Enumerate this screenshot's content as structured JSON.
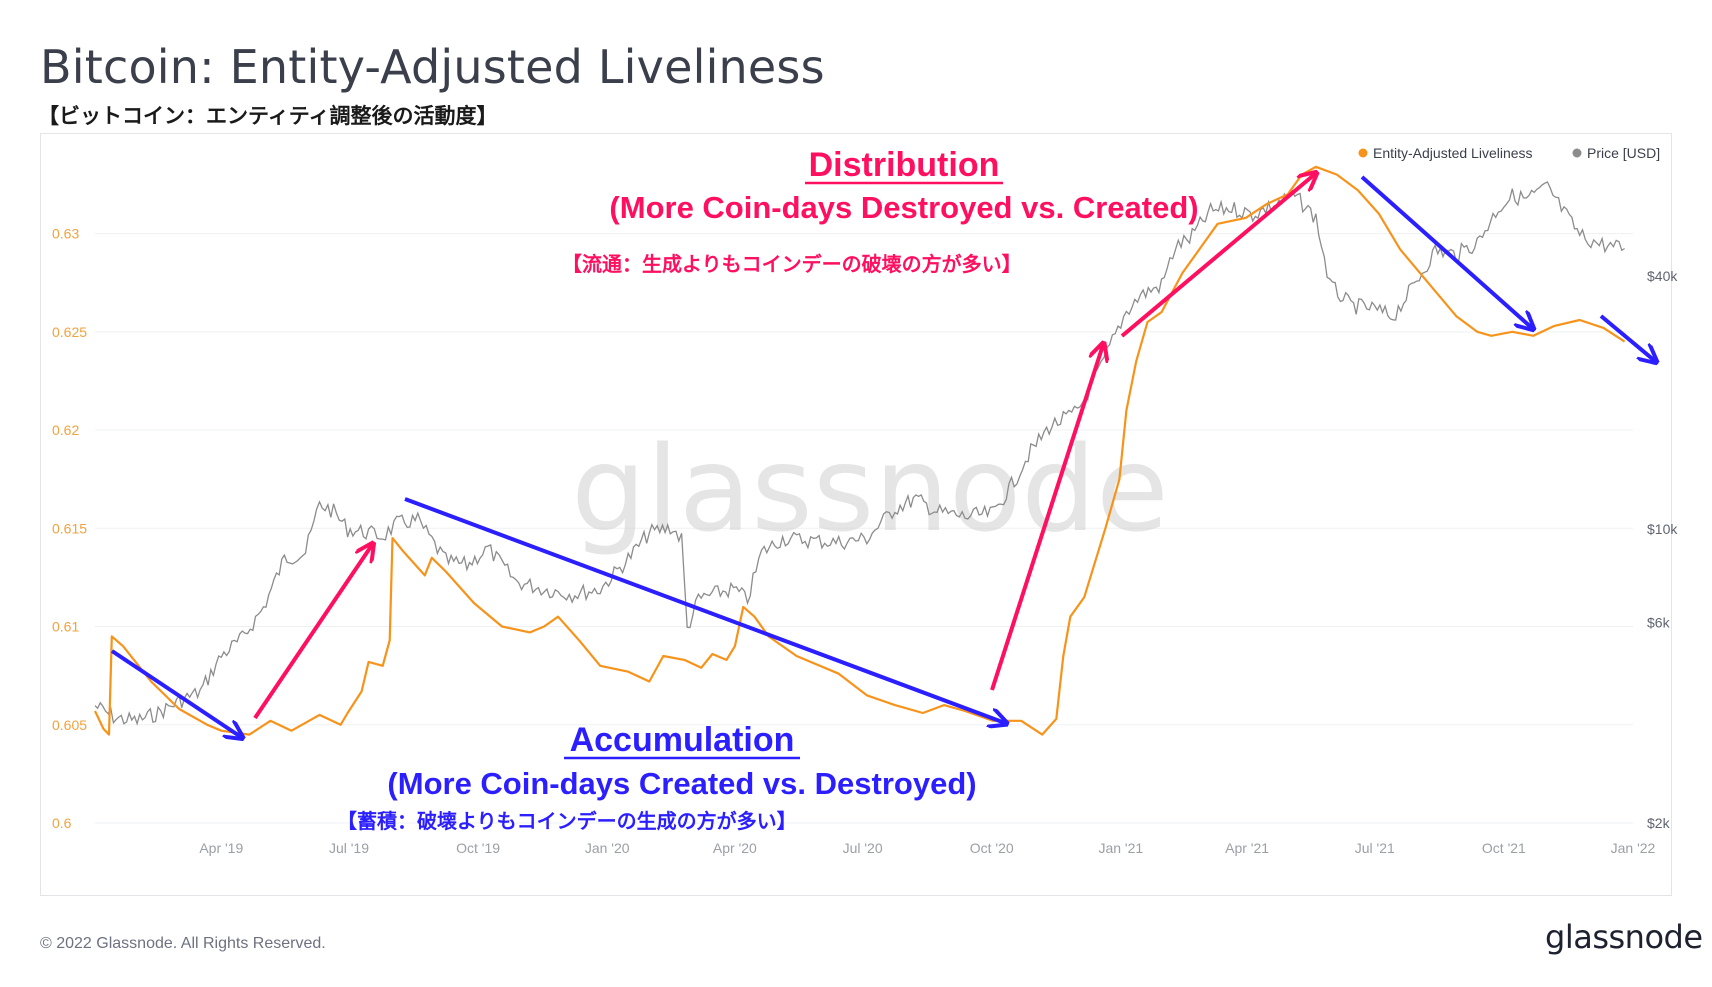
{
  "title": "Bitcoin: Entity-Adjusted Liveliness",
  "subtitle": "【ビットコイン：エンティティ調整後の活動度】",
  "footer": {
    "copyright": "© 2022 Glassnode. All Rights Reserved.",
    "logo": "glassnode"
  },
  "watermark": "glassnode",
  "colors": {
    "liveliness": "#f7931a",
    "price": "#8c8c8c",
    "distribution": "#ff0f5f",
    "accumulation": "#2b1fff",
    "axis_text": "#9aa0a6",
    "left_axis_text": "#f2a23c"
  },
  "annotations": {
    "distribution_title": "Distribution",
    "distribution_sub": "(More Coin-days Destroyed vs. Created)",
    "distribution_jp": "【流通：生成よりもコインデーの破壊の方が多い】",
    "accumulation_title": "Accumulation",
    "accumulation_sub": "(More Coin-days Created vs. Destroyed)",
    "accumulation_jp": "【蓄積：破壊よりもコインデーの生成の方が多い】"
  },
  "chart_data": {
    "type": "line",
    "title": "Bitcoin: Entity-Adjusted Liveliness",
    "legend": {
      "placement": "top-right",
      "items": [
        "Entity-Adjusted Liveliness",
        "Price [USD]"
      ]
    },
    "x_ticks": [
      "Apr '19",
      "Jul '19",
      "Oct '19",
      "Jan '20",
      "Apr '20",
      "Jul '20",
      "Oct '20",
      "Jan '21",
      "Apr '21",
      "Jul '21",
      "Oct '21",
      "Jan '22"
    ],
    "x_tick_days": [
      90,
      181,
      273,
      365,
      456,
      547,
      639,
      731,
      821,
      912,
      1004,
      1096
    ],
    "y_left": {
      "ticks": [
        "0.6",
        "0.605",
        "0.61",
        "0.615",
        "0.62",
        "0.625",
        "0.63"
      ],
      "range": [
        0.6,
        0.634
      ]
    },
    "y_right": {
      "scale": "log",
      "ticks": [
        "$2k",
        "$6k",
        "$10k",
        "$40k"
      ],
      "tick_values": [
        2000,
        6000,
        10000,
        40000
      ]
    },
    "grid": true,
    "series": [
      {
        "name": "Entity-Adjusted Liveliness",
        "axis": "left",
        "points": [
          [
            0,
            0.6057
          ],
          [
            6,
            0.6048
          ],
          [
            10,
            0.6045
          ],
          [
            12,
            0.6095
          ],
          [
            20,
            0.609
          ],
          [
            40,
            0.6072
          ],
          [
            60,
            0.6058
          ],
          [
            80,
            0.605
          ],
          [
            90,
            0.6047
          ],
          [
            110,
            0.6045
          ],
          [
            125,
            0.6052
          ],
          [
            140,
            0.6047
          ],
          [
            160,
            0.6055
          ],
          [
            175,
            0.605
          ],
          [
            180,
            0.6056
          ],
          [
            190,
            0.6067
          ],
          [
            195,
            0.6082
          ],
          [
            205,
            0.608
          ],
          [
            210,
            0.6093
          ],
          [
            212,
            0.6145
          ],
          [
            220,
            0.6138
          ],
          [
            235,
            0.6126
          ],
          [
            240,
            0.6135
          ],
          [
            250,
            0.6128
          ],
          [
            270,
            0.6112
          ],
          [
            290,
            0.61
          ],
          [
            310,
            0.6097
          ],
          [
            320,
            0.61
          ],
          [
            330,
            0.6105
          ],
          [
            345,
            0.6093
          ],
          [
            360,
            0.608
          ],
          [
            380,
            0.6077
          ],
          [
            395,
            0.6072
          ],
          [
            405,
            0.6085
          ],
          [
            420,
            0.6083
          ],
          [
            432,
            0.6079
          ],
          [
            440,
            0.6086
          ],
          [
            450,
            0.6083
          ],
          [
            456,
            0.609
          ],
          [
            462,
            0.611
          ],
          [
            470,
            0.6105
          ],
          [
            480,
            0.6095
          ],
          [
            500,
            0.6085
          ],
          [
            530,
            0.6076
          ],
          [
            550,
            0.6065
          ],
          [
            570,
            0.606
          ],
          [
            590,
            0.6056
          ],
          [
            605,
            0.606
          ],
          [
            620,
            0.6057
          ],
          [
            640,
            0.6052
          ],
          [
            660,
            0.6052
          ],
          [
            675,
            0.6045
          ],
          [
            685,
            0.6053
          ],
          [
            690,
            0.6085
          ],
          [
            695,
            0.6105
          ],
          [
            705,
            0.6115
          ],
          [
            720,
            0.615
          ],
          [
            730,
            0.6175
          ],
          [
            735,
            0.621
          ],
          [
            742,
            0.6235
          ],
          [
            750,
            0.6255
          ],
          [
            760,
            0.626
          ],
          [
            775,
            0.628
          ],
          [
            790,
            0.6295
          ],
          [
            800,
            0.6305
          ],
          [
            820,
            0.6308
          ],
          [
            835,
            0.6315
          ],
          [
            850,
            0.632
          ],
          [
            860,
            0.633
          ],
          [
            870,
            0.6334
          ],
          [
            885,
            0.633
          ],
          [
            900,
            0.6322
          ],
          [
            915,
            0.631
          ],
          [
            930,
            0.6292
          ],
          [
            950,
            0.6275
          ],
          [
            970,
            0.6258
          ],
          [
            985,
            0.625
          ],
          [
            995,
            0.6248
          ],
          [
            1010,
            0.625
          ],
          [
            1025,
            0.6248
          ],
          [
            1040,
            0.6253
          ],
          [
            1058,
            0.6256
          ],
          [
            1075,
            0.6252
          ],
          [
            1090,
            0.6245
          ]
        ]
      },
      {
        "name": "Price [USD]",
        "axis": "right",
        "points": [
          [
            0,
            3800
          ],
          [
            15,
            3550
          ],
          [
            30,
            3500
          ],
          [
            45,
            3650
          ],
          [
            60,
            3900
          ],
          [
            75,
            4100
          ],
          [
            90,
            5000
          ],
          [
            105,
            5500
          ],
          [
            120,
            6500
          ],
          [
            135,
            8500
          ],
          [
            150,
            8800
          ],
          [
            160,
            11500
          ],
          [
            170,
            11000
          ],
          [
            180,
            10000
          ],
          [
            195,
            9800
          ],
          [
            205,
            9600
          ],
          [
            215,
            10300
          ],
          [
            230,
            10500
          ],
          [
            250,
            8400
          ],
          [
            265,
            8200
          ],
          [
            280,
            9000
          ],
          [
            300,
            7500
          ],
          [
            320,
            7200
          ],
          [
            340,
            7000
          ],
          [
            360,
            7200
          ],
          [
            380,
            8500
          ],
          [
            395,
            9800
          ],
          [
            410,
            10100
          ],
          [
            418,
            9500
          ],
          [
            422,
            5800
          ],
          [
            430,
            6800
          ],
          [
            440,
            7000
          ],
          [
            455,
            7200
          ],
          [
            465,
            6800
          ],
          [
            475,
            8800
          ],
          [
            490,
            9500
          ],
          [
            510,
            9400
          ],
          [
            530,
            9300
          ],
          [
            550,
            9500
          ],
          [
            570,
            11200
          ],
          [
            585,
            11800
          ],
          [
            600,
            11000
          ],
          [
            620,
            10700
          ],
          [
            640,
            10900
          ],
          [
            655,
            13000
          ],
          [
            665,
            15000
          ],
          [
            680,
            17500
          ],
          [
            700,
            19000
          ],
          [
            715,
            23500
          ],
          [
            725,
            28000
          ],
          [
            735,
            33000
          ],
          [
            745,
            36000
          ],
          [
            760,
            38000
          ],
          [
            770,
            47000
          ],
          [
            780,
            49000
          ],
          [
            795,
            57000
          ],
          [
            810,
            58000
          ],
          [
            825,
            56000
          ],
          [
            840,
            59000
          ],
          [
            855,
            62000
          ],
          [
            870,
            55000
          ],
          [
            880,
            38000
          ],
          [
            895,
            34000
          ],
          [
            910,
            33500
          ],
          [
            925,
            32000
          ],
          [
            940,
            38000
          ],
          [
            955,
            46000
          ],
          [
            970,
            45000
          ],
          [
            985,
            48000
          ],
          [
            1000,
            58000
          ],
          [
            1010,
            62000
          ],
          [
            1020,
            61000
          ],
          [
            1035,
            65000
          ],
          [
            1045,
            58000
          ],
          [
            1058,
            50000
          ],
          [
            1070,
            48000
          ],
          [
            1080,
            47000
          ],
          [
            1090,
            46500
          ]
        ]
      }
    ]
  }
}
